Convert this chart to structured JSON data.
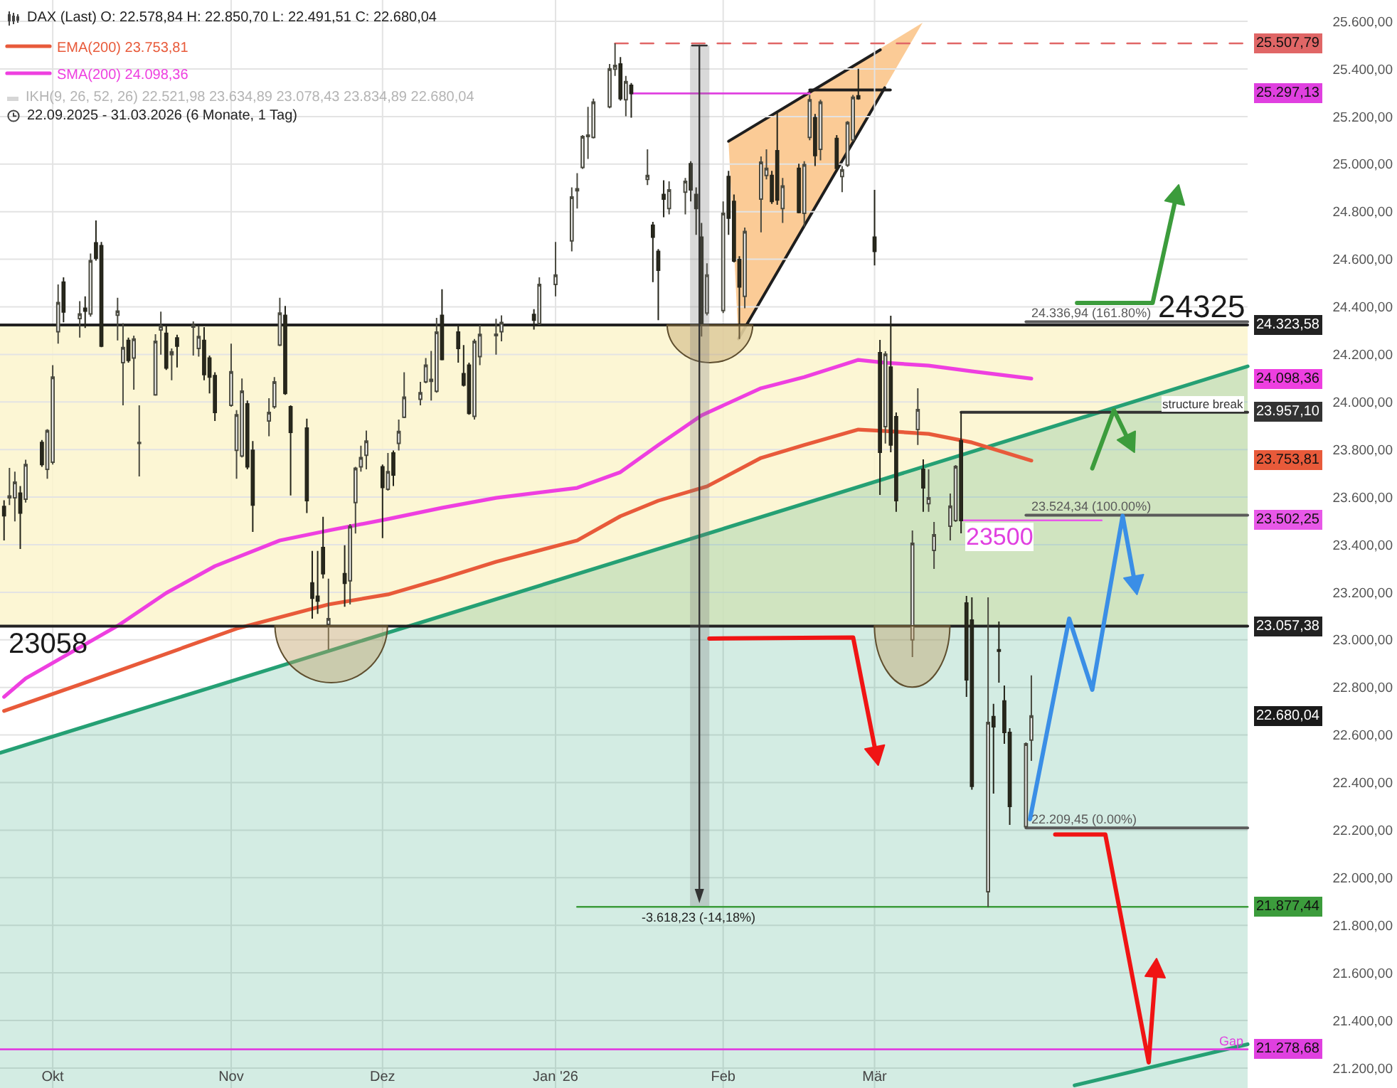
{
  "chart_data": {
    "type": "candlestick",
    "title": "DAX (Last) O: 22.578,84 H: 22.850,70 L: 22.491,51 C: 22.680,04",
    "subtitle": "22.09.2025 - 31.03.2026 (6 Monate, 1 Tag)",
    "x": [
      "2025-09-22",
      "2025-09-23",
      "2025-09-24",
      "2025-09-25",
      "2025-09-26",
      "2025-09-29",
      "2025-09-30",
      "2025-10-01",
      "2025-10-02",
      "2025-10-03",
      "2025-10-06",
      "2025-10-07",
      "2025-10-08",
      "2025-10-09",
      "2025-10-10",
      "2025-10-13",
      "2025-10-14",
      "2025-10-15",
      "2025-10-16",
      "2025-10-17",
      "2025-10-20",
      "2025-10-21",
      "2025-10-22",
      "2025-10-23",
      "2025-10-24",
      "2025-10-27",
      "2025-10-28",
      "2025-10-29",
      "2025-10-30",
      "2025-10-31",
      "2025-11-03",
      "2025-11-04",
      "2025-11-05",
      "2025-11-06",
      "2025-11-07",
      "2025-11-10",
      "2025-11-11",
      "2025-11-12",
      "2025-11-13",
      "2025-11-14",
      "2025-11-17",
      "2025-11-18",
      "2025-11-19",
      "2025-11-20",
      "2025-11-21",
      "2025-11-24",
      "2025-11-25",
      "2025-11-26",
      "2025-11-27",
      "2025-11-28",
      "2025-12-01",
      "2025-12-02",
      "2025-12-03",
      "2025-12-04",
      "2025-12-05",
      "2025-12-08",
      "2025-12-09",
      "2025-12-10",
      "2025-12-11",
      "2025-12-12",
      "2025-12-15",
      "2025-12-16",
      "2025-12-17",
      "2025-12-18",
      "2025-12-19",
      "2025-12-22",
      "2025-12-23",
      "2025-12-29",
      "2025-12-30",
      "2026-01-02",
      "2026-01-05",
      "2026-01-06",
      "2026-01-07",
      "2026-01-08",
      "2026-01-09",
      "2026-01-12",
      "2026-01-13",
      "2026-01-14",
      "2026-01-15",
      "2026-01-16",
      "2026-01-19",
      "2026-01-20",
      "2026-01-21",
      "2026-01-22",
      "2026-01-23",
      "2026-01-26",
      "2026-01-27",
      "2026-01-28",
      "2026-01-29",
      "2026-01-30",
      "2026-02-02",
      "2026-02-03",
      "2026-02-04",
      "2026-02-05",
      "2026-02-06",
      "2026-02-09",
      "2026-02-10",
      "2026-02-11",
      "2026-02-12",
      "2026-02-13",
      "2026-02-16",
      "2026-02-17",
      "2026-02-18",
      "2026-02-19",
      "2026-02-20",
      "2026-02-23",
      "2026-02-24",
      "2026-02-25",
      "2026-02-26",
      "2026-02-27",
      "2026-03-02",
      "2026-03-03",
      "2026-03-04",
      "2026-03-05",
      "2026-03-06",
      "2026-03-09",
      "2026-03-10",
      "2026-03-11",
      "2026-03-12",
      "2026-03-13",
      "2026-03-16",
      "2026-03-17",
      "2026-03-18",
      "2026-03-19",
      "2026-03-20",
      "2026-03-23",
      "2026-03-24",
      "2026-03-25",
      "2026-03-26",
      "2026-03-27",
      "2026-03-30",
      "2026-03-31"
    ],
    "ohlc": [
      [
        23561,
        23587,
        23418,
        23522
      ],
      [
        23597,
        23723,
        23567,
        23605
      ],
      [
        23597,
        23707,
        23498,
        23663
      ],
      [
        23617,
        23647,
        23382,
        23533
      ],
      [
        23591,
        23757,
        23577,
        23737
      ],
      [
        23830,
        23840,
        23727,
        23737
      ],
      [
        23717,
        23886,
        23677,
        23880
      ],
      [
        23747,
        24155,
        23737,
        24105
      ],
      [
        24295,
        24494,
        24245,
        24418
      ],
      [
        24504,
        24524,
        24335,
        24378
      ],
      [
        24351,
        24424,
        24271,
        24370
      ],
      [
        24394,
        24444,
        24311,
        24382
      ],
      [
        24370,
        24624,
        24359,
        24594
      ],
      [
        24669,
        24763,
        24594,
        24604
      ],
      [
        24657,
        24673,
        24230,
        24235
      ],
      [
        24365,
        24438,
        24259,
        24382
      ],
      [
        24165,
        24331,
        23986,
        24229
      ],
      [
        24259,
        24271,
        24165,
        24175
      ],
      [
        24185,
        24279,
        24052,
        24265
      ],
      [
        23826,
        23986,
        23687,
        23830
      ],
      [
        24030,
        24285,
        24026,
        24255
      ],
      [
        24303,
        24380,
        24199,
        24319
      ],
      [
        24289,
        24321,
        24135,
        24143
      ],
      [
        24199,
        24225,
        24091,
        24211
      ],
      [
        24269,
        24283,
        24145,
        24235
      ],
      [
        24315,
        24339,
        24195,
        24323
      ],
      [
        24225,
        24319,
        24191,
        24275
      ],
      [
        24259,
        24315,
        24091,
        24115
      ],
      [
        24185,
        24195,
        24036,
        24105
      ],
      [
        24111,
        24125,
        23920,
        23956
      ],
      [
        23986,
        24245,
        23980,
        24127
      ],
      [
        23797,
        23966,
        23677,
        23946
      ],
      [
        23773,
        24099,
        23767,
        24046
      ],
      [
        23992,
        24006,
        23717,
        23727
      ],
      [
        23797,
        23836,
        23454,
        23567
      ],
      [
        23920,
        24016,
        23856,
        23956
      ],
      [
        23980,
        24105,
        23972,
        24085
      ],
      [
        24239,
        24438,
        24235,
        24374
      ],
      [
        24364,
        24404,
        24030,
        24036
      ],
      [
        23980,
        23986,
        23607,
        23872
      ],
      [
        23890,
        23930,
        23533,
        23585
      ],
      [
        23239,
        23374,
        23089,
        23175
      ],
      [
        23183,
        23374,
        23109,
        23163
      ],
      [
        23388,
        23517,
        23258,
        23278
      ],
      [
        23065,
        23257,
        22958,
        23089
      ],
      [
        23278,
        23398,
        23139,
        23238
      ],
      [
        23248,
        23487,
        23149,
        23477
      ],
      [
        23577,
        23727,
        23447,
        23721
      ],
      [
        23727,
        23816,
        23707,
        23766
      ],
      [
        23776,
        23880,
        23717,
        23836
      ],
      [
        23727,
        23737,
        23428,
        23641
      ],
      [
        23633,
        23786,
        23627,
        23707
      ],
      [
        23786,
        23796,
        23647,
        23693
      ],
      [
        23826,
        23926,
        23796,
        23876
      ],
      [
        23936,
        24125,
        23932,
        24020
      ],
      [
        24011,
        24085,
        23986,
        24039
      ],
      [
        24085,
        24185,
        24079,
        24155
      ],
      [
        24087,
        24215,
        24006,
        24095
      ],
      [
        24045,
        24354,
        24039,
        24294
      ],
      [
        24364,
        24474,
        24175,
        24179
      ],
      [
        24294,
        24324,
        24165,
        24225
      ],
      [
        24119,
        24239,
        24065,
        24071
      ],
      [
        24155,
        24165,
        23946,
        23952
      ],
      [
        23940,
        24265,
        23926,
        24255
      ],
      [
        24191,
        24324,
        24155,
        24284
      ],
      [
        24279,
        24350,
        24199,
        24285
      ],
      [
        24295,
        24364,
        24255,
        24334
      ],
      [
        24368,
        24390,
        24304,
        24344
      ],
      [
        24330,
        24524,
        24324,
        24494
      ],
      [
        24494,
        24673,
        24444,
        24534
      ],
      [
        24677,
        24902,
        24633,
        24862
      ],
      [
        24888,
        24962,
        24813,
        24896
      ],
      [
        24986,
        25122,
        24980,
        25116
      ],
      [
        25116,
        25241,
        25022,
        25122
      ],
      [
        25112,
        25275,
        25108,
        25261
      ],
      [
        25241,
        25421,
        25235,
        25401
      ],
      [
        25399,
        25508,
        25371,
        25415
      ],
      [
        25421,
        25450,
        25267,
        25275
      ],
      [
        25271,
        25371,
        25201,
        25347
      ],
      [
        25331,
        25341,
        25195,
        25297
      ],
      [
        24936,
        25062,
        24912,
        24952
      ],
      [
        24743,
        24757,
        24504,
        24693
      ],
      [
        24633,
        24643,
        24344,
        24554
      ],
      [
        24872,
        24932,
        24777,
        24853
      ],
      [
        24813,
        24928,
        24789,
        24892
      ],
      [
        24882,
        24942,
        24789,
        24928
      ],
      [
        25002,
        25012,
        24843,
        24892
      ],
      [
        24872,
        24902,
        24703,
        24813
      ],
      [
        24693,
        24753,
        24275,
        24324
      ],
      [
        24374,
        24583,
        24364,
        24534
      ],
      [
        24384,
        24843,
        24374,
        24793
      ],
      [
        24948,
        24972,
        24703,
        24773
      ],
      [
        24843,
        24872,
        24587,
        24593
      ],
      [
        24599,
        24613,
        24265,
        24484
      ],
      [
        24444,
        24733,
        24394,
        24717
      ],
      [
        24853,
        25032,
        24713,
        25008
      ],
      [
        24952,
        25062,
        24936,
        24982
      ],
      [
        24952,
        24972,
        24833,
        24843
      ],
      [
        25056,
        25221,
        24829,
        24849
      ],
      [
        24813,
        24942,
        24753,
        24908
      ],
      [
        24982,
        25002,
        24793,
        24797
      ],
      [
        24793,
        25012,
        24737,
        24998
      ],
      [
        25112,
        25291,
        25100,
        25271
      ],
      [
        25195,
        25211,
        24992,
        25036
      ],
      [
        25062,
        25271,
        25016,
        25261
      ],
      [
        25108,
        25122,
        24972,
        24982
      ],
      [
        24948,
        24992,
        24882,
        24976
      ],
      [
        24996,
        25181,
        24988,
        25175
      ],
      [
        25102,
        25291,
        25096,
        25281
      ],
      [
        25287,
        25401,
        25271,
        25275
      ],
      [
        24693,
        24892,
        24574,
        24633
      ],
      [
        24207,
        24261,
        23609,
        23789
      ],
      [
        23896,
        24213,
        23825,
        24201
      ],
      [
        24147,
        24363,
        23789,
        23819
      ],
      [
        23938,
        23956,
        23538,
        23585
      ],
      [
        23000,
        23460,
        22928,
        23406
      ],
      [
        23884,
        24058,
        23819,
        23968
      ],
      [
        23717,
        23759,
        23538,
        23639
      ],
      [
        23573,
        23717,
        23538,
        23597
      ],
      [
        23376,
        23496,
        23298,
        23442
      ],
      [
        23478,
        23615,
        23418,
        23562
      ],
      [
        23502,
        23735,
        23496,
        23729
      ],
      [
        23837,
        23957,
        23448,
        23502
      ],
      [
        23155,
        23185,
        22760,
        22832
      ],
      [
        23083,
        23179,
        22370,
        22384
      ],
      [
        21941,
        23179,
        21877,
        22653
      ],
      [
        22677,
        22731,
        22354,
        22635
      ],
      [
        22958,
        23077,
        22820,
        22952
      ],
      [
        22743,
        22808,
        22563,
        22611
      ],
      [
        22611,
        22629,
        22222,
        22300
      ],
      [
        22215,
        22569,
        22209,
        22563
      ],
      [
        22578.84,
        22850.7,
        22491.51,
        22680.04
      ]
    ],
    "xlim": [
      "2025-09-21T06:00",
      "2026-06-06T15:00"
    ],
    "xticks": [
      {
        "value": "2025-10-01",
        "label": "Okt"
      },
      {
        "value": "2025-11-03",
        "label": "Nov"
      },
      {
        "value": "2025-12-01",
        "label": "Dez"
      },
      {
        "value": "2026-01-02",
        "label": "Jan '26"
      },
      {
        "value": "2026-02-02",
        "label": "Feb"
      },
      {
        "value": "2026-03-02",
        "label": "Mär"
      }
    ],
    "ylim": [
      21116,
      25690
    ],
    "yticks": [
      {
        "value": 21200,
        "label": "21.200,00"
      },
      {
        "value": 21400,
        "label": "21.400,00"
      },
      {
        "value": 21600,
        "label": "21.600,00"
      },
      {
        "value": 21800,
        "label": "21.800,00"
      },
      {
        "value": 22000,
        "label": "22.000,00"
      },
      {
        "value": 22200,
        "label": "22.200,00"
      },
      {
        "value": 22400,
        "label": "22.400,00"
      },
      {
        "value": 22600,
        "label": "22.600,00"
      },
      {
        "value": 22800,
        "label": "22.800,00"
      },
      {
        "value": 23000,
        "label": "23.000,00"
      },
      {
        "value": 23200,
        "label": "23.200,00"
      },
      {
        "value": 23400,
        "label": "23.400,00"
      },
      {
        "value": 23600,
        "label": "23.600,00"
      },
      {
        "value": 23800,
        "label": "23.800,00"
      },
      {
        "value": 24000,
        "label": "24.000,00"
      },
      {
        "value": 24200,
        "label": "24.200,00"
      },
      {
        "value": 24400,
        "label": "24.400,00"
      },
      {
        "value": 24600,
        "label": "24.600,00"
      },
      {
        "value": 24800,
        "label": "24.800,00"
      },
      {
        "value": 25000,
        "label": "25.000,00"
      },
      {
        "value": 25200,
        "label": "25.200,00"
      },
      {
        "value": 25400,
        "label": "25.400,00"
      },
      {
        "value": 25600,
        "label": "25.600,00"
      }
    ],
    "grid": true,
    "legend": "top left",
    "bands": [
      {
        "axis": "y",
        "from": 23057.38,
        "to": 24323.58,
        "color": "#fbf4cc"
      }
    ],
    "series": [
      {
        "type": "area",
        "color": "#25a074",
        "x": [
          "2025-09-21T06:00",
          "2026-05-10T00:00"
        ],
        "values": [
          22525,
          24150
        ]
      },
      {
        "type": "line",
        "color": "#25a074",
        "x": [
          "2026-04-08",
          "2026-05-10T00:00"
        ],
        "values": [
          21127,
          21300
        ]
      },
      {
        "type": "line",
        "name": "EMA(200) 23.753,81",
        "color": "#e85a3a",
        "x": [
          "2025-09-22",
          "2025-10-07",
          "2025-11-04",
          "2025-11-21",
          "2025-12-02",
          "2025-12-12",
          "2025-12-22",
          "2026-01-06",
          "2026-01-14",
          "2026-01-21",
          "2026-01-30",
          "2026-02-09",
          "2026-02-17",
          "2026-02-27",
          "2026-03-04",
          "2026-03-12",
          "2026-03-20",
          "2026-03-31"
        ],
        "values": [
          22701,
          22820,
          23047,
          23149,
          23191,
          23257,
          23328,
          23418,
          23520,
          23585,
          23645,
          23765,
          23819,
          23884,
          23878,
          23866,
          23830,
          23753.81
        ]
      },
      {
        "type": "line",
        "name": "SMA(200) 24.098,36",
        "color": "#ee3fe0",
        "x": [
          "2025-09-22",
          "2025-09-26",
          "2025-10-13",
          "2025-10-22",
          "2025-10-31",
          "2025-11-12",
          "2025-11-21",
          "2025-12-02",
          "2025-12-12",
          "2025-12-22",
          "2026-01-06",
          "2026-01-14",
          "2026-01-21",
          "2026-01-29",
          "2026-02-09",
          "2026-02-17",
          "2026-02-27",
          "2026-03-04",
          "2026-03-12",
          "2026-03-20",
          "2026-03-31"
        ],
        "values": [
          22760,
          22838,
          23059,
          23197,
          23310,
          23418,
          23460,
          23508,
          23555,
          23597,
          23639,
          23705,
          23819,
          23944,
          24058,
          24105,
          24177,
          24165,
          24153,
          24129,
          24098.36
        ]
      },
      {
        "type": "line",
        "color": "#e06666",
        "line_style": "dashed",
        "x": [
          "2026-01-13",
          "2026-05-10T00:00"
        ],
        "values": [
          25507.79,
          25507.79
        ]
      },
      {
        "type": "line",
        "color": "#e040e0",
        "x": [
          "2026-01-16",
          "2026-02-18"
        ],
        "values": [
          25297.13,
          25297.13
        ]
      },
      {
        "type": "line",
        "name": "structure break",
        "color": "#333333",
        "x": [
          "2026-03-18",
          "2026-05-10T00:00"
        ],
        "values": [
          23957.1,
          23957.1
        ]
      },
      {
        "type": "line",
        "name": "24.336,94 (161.80%)",
        "color": "#5a5a5a",
        "x": [
          "2026-03-30",
          "2026-05-10T00:00"
        ],
        "values": [
          24336.94,
          24336.94
        ]
      },
      {
        "type": "line",
        "name": "23.524,34 (100.00%)",
        "color": "#5a5a5a",
        "x": [
          "2026-03-30",
          "2026-05-10T00:00"
        ],
        "values": [
          23524.34,
          23524.34
        ]
      },
      {
        "type": "line",
        "name": "22.209,45 (0.00%)",
        "color": "#5a5a5a",
        "x": [
          "2026-03-30",
          "2026-05-10T00:00"
        ],
        "values": [
          22209.45,
          22209.45
        ]
      },
      {
        "type": "line",
        "color": "#e858e8",
        "x": [
          "2026-03-18",
          "2026-04-13"
        ],
        "values": [
          23502.25,
          23502.25
        ]
      },
      {
        "type": "line",
        "color": "#3c9c3c",
        "x": [
          "2026-01-06",
          "2026-05-10T00:00"
        ],
        "values": [
          21877.44,
          21877.44
        ]
      },
      {
        "type": "line",
        "color": "#222222",
        "x": [
          "2025-09-21T06:00",
          "2026-05-10T00:00"
        ],
        "values": [
          24323.58,
          24323.58
        ]
      },
      {
        "type": "line",
        "color": "#222222",
        "x": [
          "2025-09-21T06:00",
          "2026-05-10T00:00"
        ],
        "values": [
          23057.38,
          23057.38
        ]
      },
      {
        "type": "line",
        "name": "Gap",
        "color": "#e040e0",
        "x": [
          "2025-09-21T06:00",
          "2026-05-10T00:00"
        ],
        "values": [
          21278.68,
          21278.68
        ]
      }
    ],
    "annotations": [
      {
        "text": "25.507,79",
        "x": "2026-05-10T00:00",
        "y": 25507.79
      },
      {
        "text": "24.323,58",
        "x": "2026-05-10T00:00",
        "y": 24323.58
      },
      {
        "text": "23.957,10",
        "x": "2026-05-10T00:00",
        "y": 23957.1
      },
      {
        "text": "23.057,38",
        "x": "2026-05-10T00:00",
        "y": 23057.38
      },
      {
        "text": "21.877,44",
        "x": "2026-05-10T00:00",
        "y": 21877.44
      },
      {
        "text": "21.278,68",
        "x": "2026-05-10T00:00",
        "y": 21278.68
      },
      "25.297,13",
      "24.098,36",
      "23.753,81",
      "23.502,25",
      "22.680,04",
      "24325",
      "23058",
      "23500",
      "-3.618,23 (-14,18%)",
      "IKH(9, 26, 52, 26) 22.521,98 23.634,89 23.078,43 23.834,89 22.680,04"
    ]
  }
}
